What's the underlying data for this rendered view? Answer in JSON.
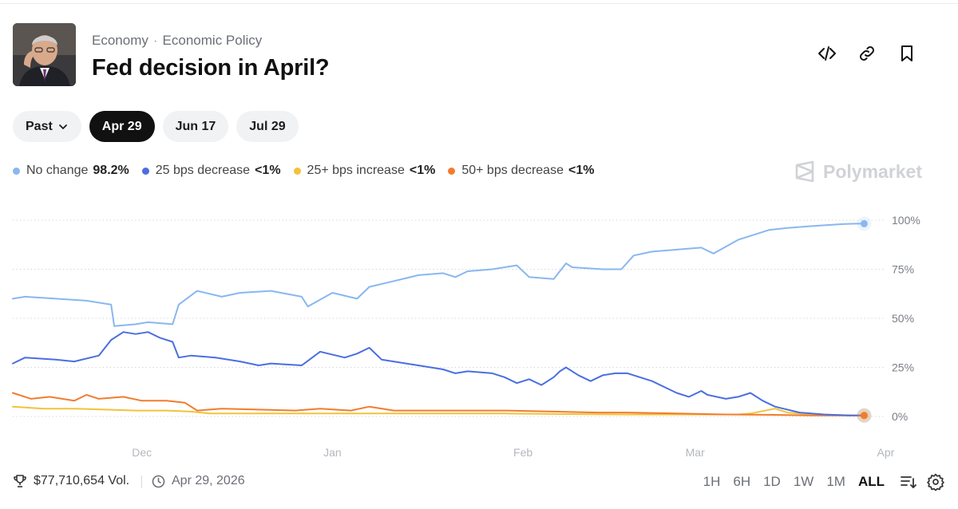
{
  "header": {
    "breadcrumb": [
      "Economy",
      "Economic Policy"
    ],
    "breadcrumb_separator": "·",
    "title": "Fed decision in April?",
    "actions": [
      "embed-icon",
      "link-icon",
      "bookmark-icon"
    ]
  },
  "pills": [
    {
      "label": "Past",
      "active": false,
      "dropdown": true
    },
    {
      "label": "Apr 29",
      "active": true
    },
    {
      "label": "Jun 17",
      "active": false
    },
    {
      "label": "Jul 29",
      "active": false
    }
  ],
  "brand": "Polymarket",
  "footer": {
    "volume": "$77,710,654 Vol.",
    "date": "Apr 29, 2026",
    "ranges": [
      "1H",
      "6H",
      "1D",
      "1W",
      "1M",
      "ALL"
    ],
    "active_range": "ALL"
  },
  "chart_data": {
    "type": "line",
    "x_ticks": [
      "Dec",
      "Jan",
      "Feb",
      "Mar",
      "Apr"
    ],
    "y_ticks": [
      "100%",
      "75%",
      "50%",
      "25%",
      "0%"
    ],
    "ylim": [
      0,
      100
    ],
    "x_range_days": [
      0,
      140
    ],
    "x_tick_days": [
      21,
      52,
      83,
      111,
      142
    ],
    "grid": true,
    "legend_position": "top-left",
    "series": [
      {
        "name": "No change",
        "display": "98.2%",
        "color": "#89b7ef",
        "x": [
          0,
          2,
          7,
          12,
          16,
          16.5,
          20,
          22,
          26,
          27,
          30,
          34,
          37,
          42,
          47,
          48,
          52,
          56,
          58,
          62,
          66,
          70,
          72,
          74,
          78,
          82,
          84,
          88,
          90,
          91,
          96,
          99,
          101,
          104,
          108,
          112,
          114,
          118,
          123,
          126,
          130,
          135,
          137,
          138.5
        ],
        "y": [
          60,
          61,
          60,
          59,
          57,
          46,
          47,
          48,
          47,
          57,
          64,
          61,
          63,
          64,
          61,
          56,
          63,
          60,
          66,
          69,
          72,
          73,
          71,
          74,
          75,
          77,
          71,
          70,
          78,
          76,
          75,
          75,
          82,
          84,
          85,
          86,
          83,
          90,
          95,
          96,
          97,
          98,
          98.2,
          98.2
        ]
      },
      {
        "name": "25 bps decrease",
        "display": "<1%",
        "color": "#4b6ee0",
        "x": [
          0,
          2,
          7,
          10,
          14,
          16,
          18,
          20,
          22,
          24,
          26,
          27,
          29,
          33,
          37,
          40,
          42,
          47,
          50,
          54,
          56,
          58,
          60,
          64,
          68,
          70,
          72,
          74,
          78,
          80,
          82,
          84,
          86,
          88,
          89,
          90,
          92,
          94,
          96,
          98,
          100,
          102,
          104,
          106,
          108,
          110,
          112,
          113,
          116,
          118,
          120,
          122,
          124,
          128,
          132,
          136,
          138.5
        ],
        "y": [
          27,
          30,
          29,
          28,
          31,
          39,
          43,
          42,
          43,
          40,
          38,
          30,
          31,
          30,
          28,
          26,
          27,
          26,
          33,
          30,
          32,
          35,
          29,
          27,
          25,
          24,
          22,
          23,
          22,
          20,
          17,
          19,
          16,
          20,
          23,
          25,
          21,
          18,
          21,
          22,
          22,
          20,
          18,
          15,
          12,
          10,
          13,
          11,
          9,
          10,
          12,
          8,
          5,
          2,
          1,
          0.5,
          0.5
        ]
      },
      {
        "name": "25+ bps increase",
        "display": "<1%",
        "color": "#f2c23a",
        "x": [
          0,
          5,
          10,
          15,
          20,
          25,
          29,
          32,
          40,
          50,
          60,
          70,
          80,
          90,
          100,
          110,
          118,
          120,
          124,
          126,
          130,
          138.5
        ],
        "y": [
          5,
          4,
          4,
          3.5,
          3,
          3,
          2.5,
          1.5,
          1.5,
          1.5,
          1.5,
          1.5,
          1.5,
          1.2,
          1,
          1,
          1,
          1.5,
          4,
          2,
          1,
          0.5
        ]
      },
      {
        "name": "50+ bps decrease",
        "display": "<1%",
        "color": "#f07d2d",
        "x": [
          0,
          3,
          6,
          10,
          12,
          14,
          18,
          21,
          25,
          28,
          30,
          34,
          40,
          46,
          50,
          55,
          58,
          62,
          66,
          72,
          80,
          88,
          95,
          100,
          108,
          116,
          124,
          130,
          138.5
        ],
        "y": [
          12,
          9,
          10,
          8,
          11,
          9,
          10,
          8,
          8,
          7,
          3,
          4,
          3.5,
          3,
          4,
          3,
          5,
          3,
          3,
          3,
          3,
          2.5,
          2,
          2,
          1.5,
          1,
          0.8,
          0.5,
          0.5
        ]
      }
    ]
  }
}
